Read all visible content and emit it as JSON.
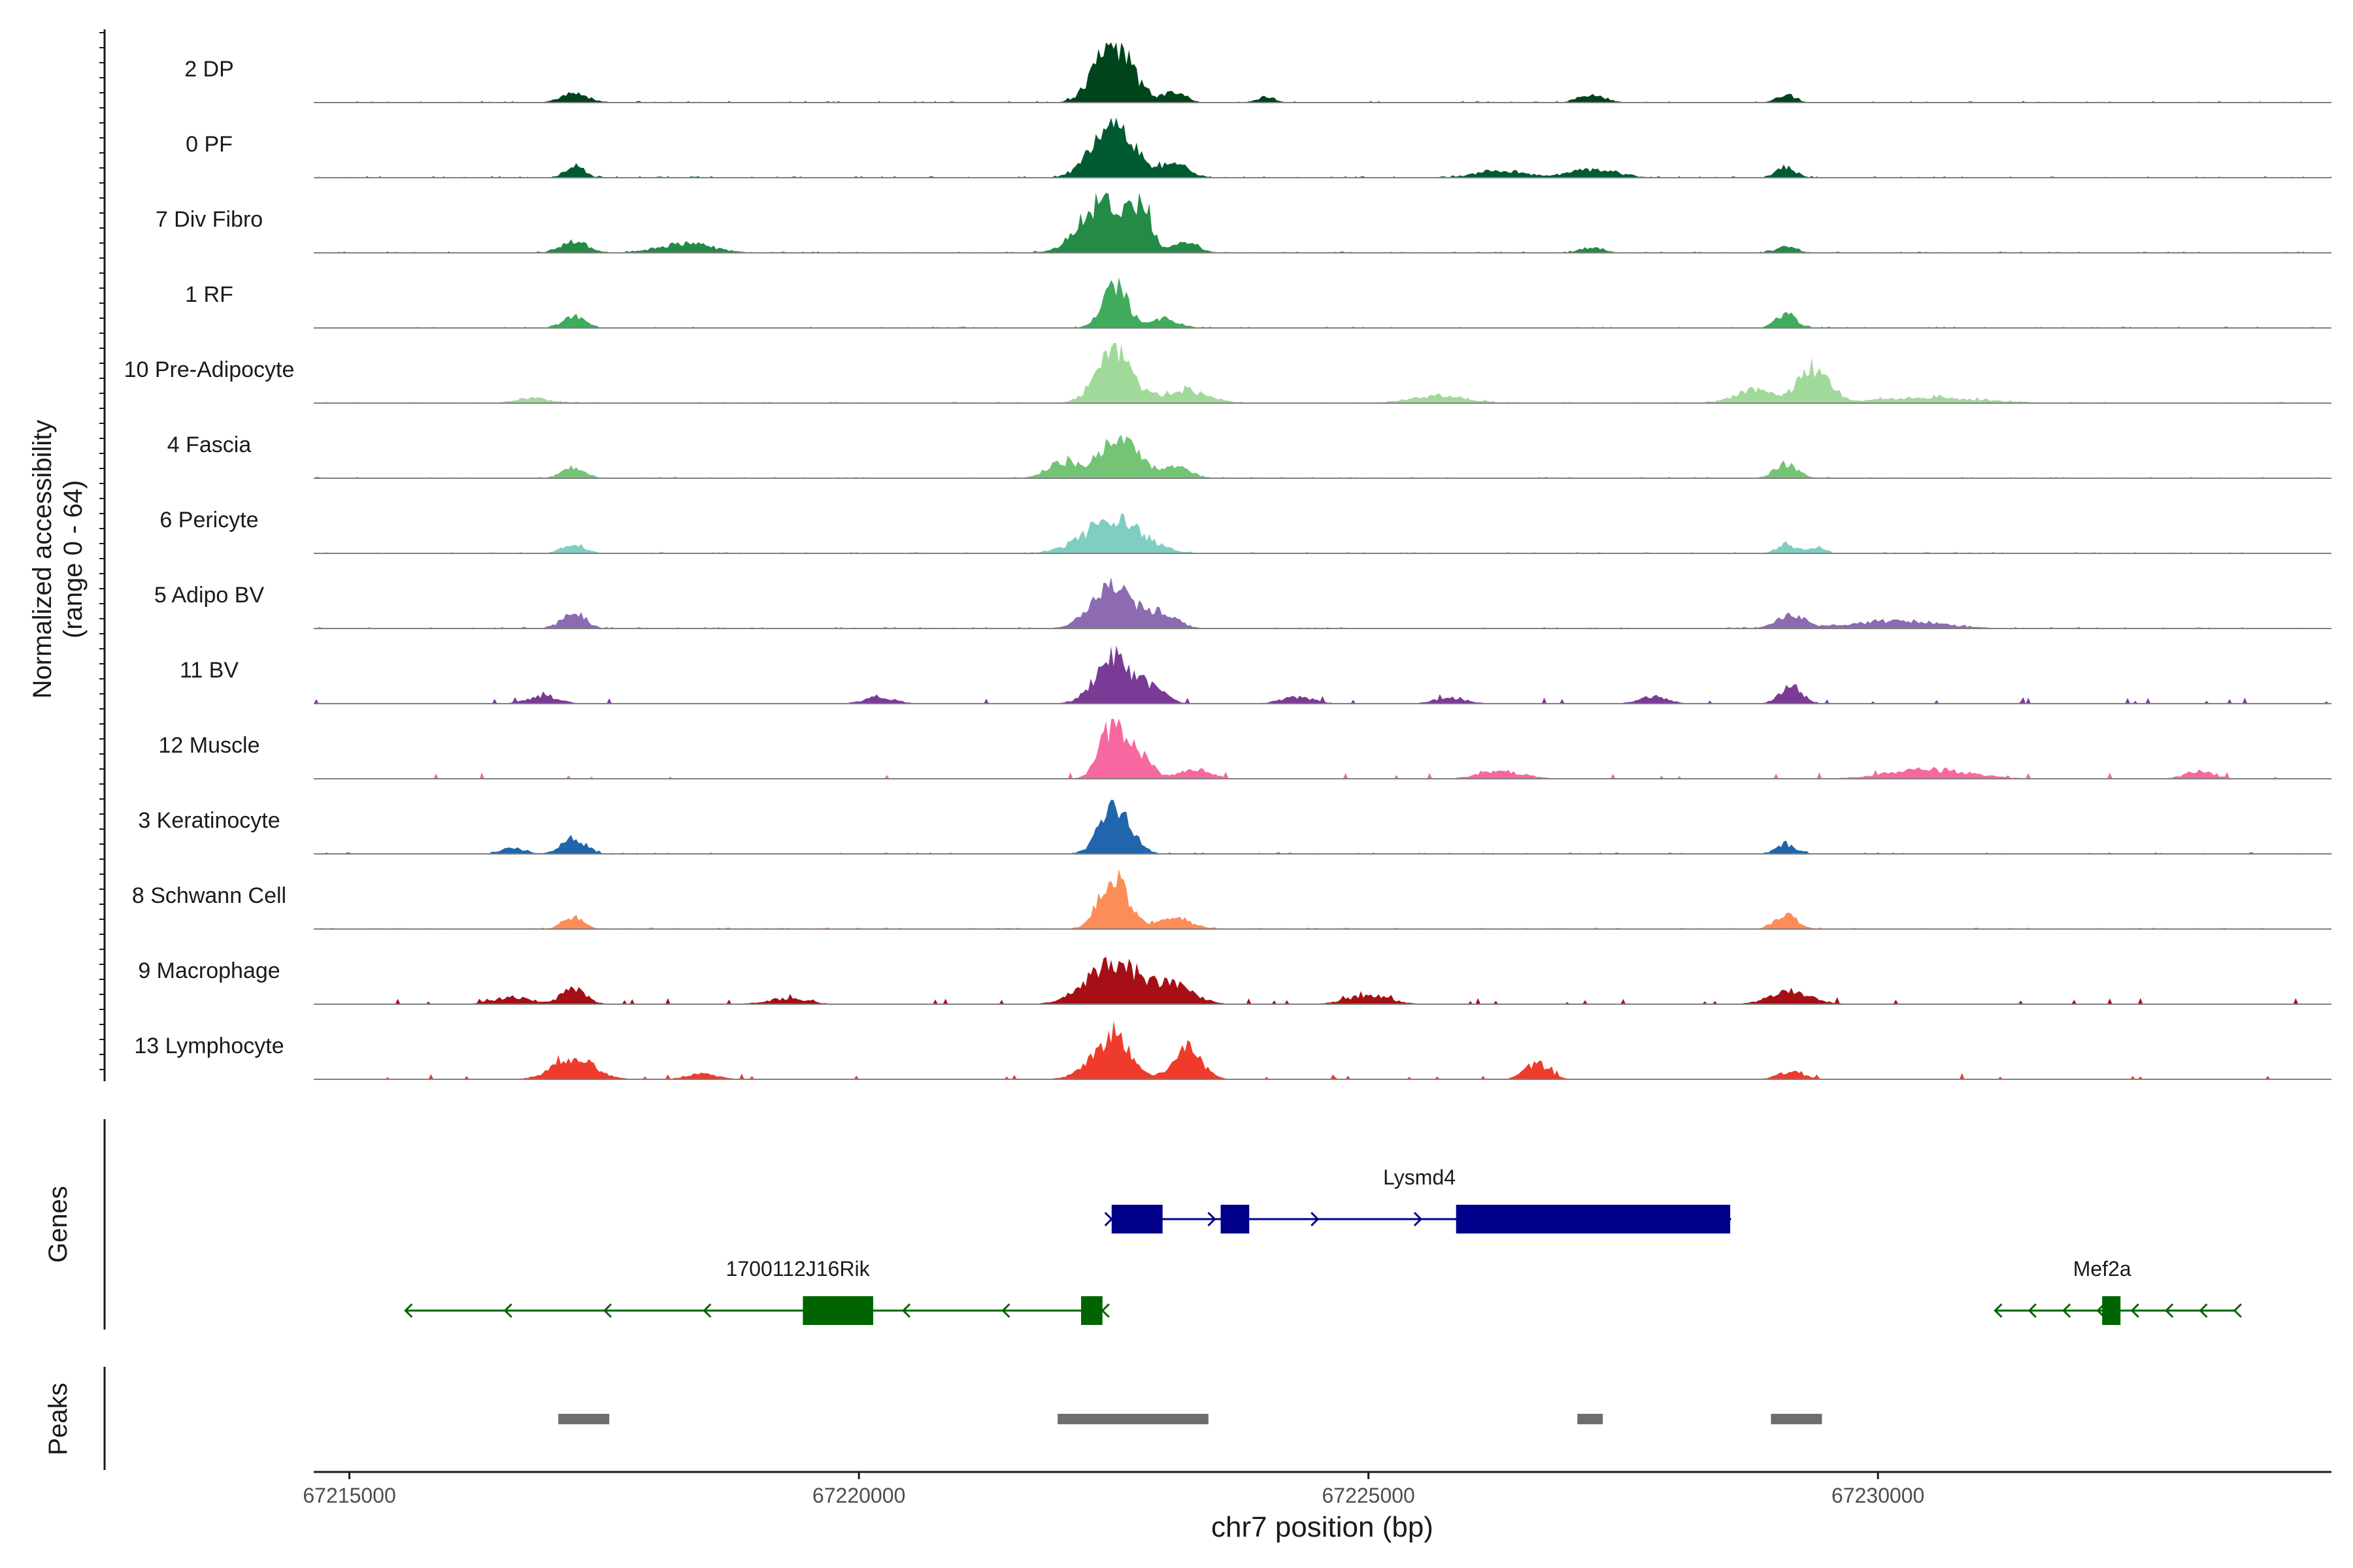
{
  "chart_data": {
    "type": "area",
    "title": "",
    "ylabel_line1": "Normalized accessibility",
    "ylabel_line2": "(range 0 - 64)",
    "ylim": [
      0,
      64
    ],
    "xlabel": "chr7 position (bp)",
    "xlim": [
      67214650,
      67234450
    ],
    "x_ticks": [
      67215000,
      67220000,
      67225000,
      67230000
    ],
    "x_tick_labels": [
      "67215000",
      "67220000",
      "67225000",
      "67230000"
    ],
    "tracks": [
      {
        "name": "2 DP",
        "color": "#00441b",
        "sparse": false,
        "peaks": [
          [
            67217210,
            10,
            130
          ],
          [
            67222500,
            64,
            180
          ],
          [
            67223100,
            10,
            110
          ],
          [
            67224000,
            7,
            80
          ],
          [
            67227200,
            8,
            130
          ],
          [
            67229100,
            8,
            90
          ]
        ]
      },
      {
        "name": "0 PF",
        "color": "#005a32",
        "sparse": false,
        "peaks": [
          [
            67217210,
            14,
            90
          ],
          [
            67222500,
            60,
            200
          ],
          [
            67223100,
            14,
            140
          ],
          [
            67226300,
            8,
            230
          ],
          [
            67227200,
            9,
            230
          ],
          [
            67229100,
            12,
            90
          ]
        ]
      },
      {
        "name": "7 Div Fibro",
        "color": "#238b45",
        "sparse": false,
        "peaks": [
          [
            67217200,
            12,
            130
          ],
          [
            67218300,
            10,
            260
          ],
          [
            67222400,
            56,
            220
          ],
          [
            67222780,
            46,
            90
          ],
          [
            67223200,
            10,
            140
          ],
          [
            67227200,
            6,
            110
          ],
          [
            67229100,
            6,
            100
          ]
        ]
      },
      {
        "name": "1 RF",
        "color": "#41ab5d",
        "sparse": false,
        "peaks": [
          [
            67217200,
            12,
            110
          ],
          [
            67222510,
            48,
            120
          ],
          [
            67223000,
            10,
            140
          ],
          [
            67229100,
            14,
            100
          ]
        ]
      },
      {
        "name": "10 Pre-Adipocyte",
        "color": "#a1d99b",
        "sparse": false,
        "peaks": [
          [
            67216800,
            5,
            170
          ],
          [
            67222500,
            56,
            170
          ],
          [
            67223200,
            14,
            220
          ],
          [
            67225700,
            8,
            260
          ],
          [
            67228800,
            14,
            200
          ],
          [
            67229380,
            38,
            150
          ],
          [
            67230500,
            6,
            500
          ]
        ]
      },
      {
        "name": "4 Fascia",
        "color": "#74c476",
        "sparse": false,
        "peaks": [
          [
            67217200,
            12,
            110
          ],
          [
            67222550,
            50,
            170
          ],
          [
            67222000,
            18,
            160
          ],
          [
            67223100,
            12,
            150
          ],
          [
            67229100,
            16,
            110
          ]
        ]
      },
      {
        "name": "6 Pericyte",
        "color": "#80cdc1",
        "sparse": false,
        "peaks": [
          [
            67217200,
            10,
            110
          ],
          [
            67222500,
            36,
            280
          ],
          [
            67229100,
            10,
            90
          ],
          [
            67229400,
            6,
            80
          ]
        ]
      },
      {
        "name": "5 Adipo BV",
        "color": "#8c6bb1",
        "sparse": false,
        "peaks": [
          [
            67217200,
            18,
            110
          ],
          [
            67222500,
            44,
            210
          ],
          [
            67223000,
            14,
            140
          ],
          [
            67229150,
            14,
            140
          ],
          [
            67230200,
            8,
            420
          ]
        ]
      },
      {
        "name": "11 BV",
        "color": "#7a3b96",
        "sparse": true,
        "peaks": [
          [
            67222500,
            48,
            180
          ],
          [
            67222880,
            16,
            130
          ],
          [
            67229150,
            18,
            110
          ],
          [
            67216900,
            8,
            150
          ],
          [
            67220200,
            7,
            150
          ],
          [
            67224300,
            7,
            160
          ],
          [
            67225800,
            6,
            160
          ],
          [
            67227800,
            8,
            140
          ]
        ]
      },
      {
        "name": "12 Muscle",
        "color": "#f768a1",
        "sparse": true,
        "peaks": [
          [
            67222500,
            58,
            130
          ],
          [
            67222780,
            20,
            110
          ],
          [
            67223300,
            10,
            150
          ],
          [
            67226300,
            8,
            220
          ],
          [
            67230500,
            10,
            400
          ],
          [
            67233150,
            8,
            140
          ]
        ]
      },
      {
        "name": "3 Keratinocyte",
        "color": "#2166ac",
        "sparse": false,
        "peaks": [
          [
            67217200,
            16,
            120
          ],
          [
            67222520,
            48,
            150
          ],
          [
            67229100,
            10,
            100
          ],
          [
            67216600,
            6,
            110
          ]
        ]
      },
      {
        "name": "8 Schwann Cell",
        "color": "#fc8d59",
        "sparse": false,
        "peaks": [
          [
            67217200,
            14,
            100
          ],
          [
            67222500,
            58,
            140
          ],
          [
            67223100,
            12,
            160
          ],
          [
            67229100,
            14,
            110
          ]
        ]
      },
      {
        "name": "9 Macrophage",
        "color": "#a50f15",
        "sparse": true,
        "peaks": [
          [
            67222500,
            44,
            260
          ],
          [
            67223100,
            18,
            200
          ],
          [
            67217200,
            16,
            120
          ],
          [
            67225000,
            10,
            200
          ],
          [
            67229150,
            14,
            200
          ],
          [
            67216600,
            7,
            200
          ],
          [
            67219300,
            6,
            200
          ]
        ]
      },
      {
        "name": "13 Lymphocyte",
        "color": "#ef3b2c",
        "sparse": true,
        "peaks": [
          [
            67217200,
            22,
            200
          ],
          [
            67222500,
            48,
            160
          ],
          [
            67223220,
            32,
            140
          ],
          [
            67226650,
            16,
            120
          ],
          [
            67229150,
            8,
            130
          ],
          [
            67218450,
            6,
            150
          ],
          [
            67222200,
            6,
            140
          ]
        ]
      }
    ],
    "genes": {
      "label": "Genes",
      "items": [
        {
          "name": "Lysmd4",
          "strand": "+",
          "color": "#00008b",
          "start": 67222480,
          "end": 67228550,
          "exons": [
            [
              67222480,
              67222980
            ],
            [
              67223550,
              67223830
            ],
            [
              67225860,
              67228550
            ]
          ],
          "label_pos": 67225500,
          "row": 0
        },
        {
          "name": "1700112J16Rik",
          "strand": "-",
          "color": "#006400",
          "start": 67215550,
          "end": 67222390,
          "exons": [
            [
              67219450,
              67220140
            ],
            [
              67222180,
              67222390
            ]
          ],
          "label_pos": 67219400,
          "row": 1
        },
        {
          "name": "Mef2a",
          "strand": "-",
          "color": "#006400",
          "start": 67231150,
          "end": 67233500,
          "exons": [
            [
              67232200,
              67232380
            ]
          ],
          "label_pos": 67232200,
          "row": 1
        }
      ]
    },
    "peak_regions": {
      "label": "Peaks",
      "color": "#6e6e6e",
      "items": [
        [
          67217050,
          67217550
        ],
        [
          67221950,
          67223430
        ],
        [
          67227050,
          67227300
        ],
        [
          67228950,
          67229450
        ]
      ]
    }
  }
}
